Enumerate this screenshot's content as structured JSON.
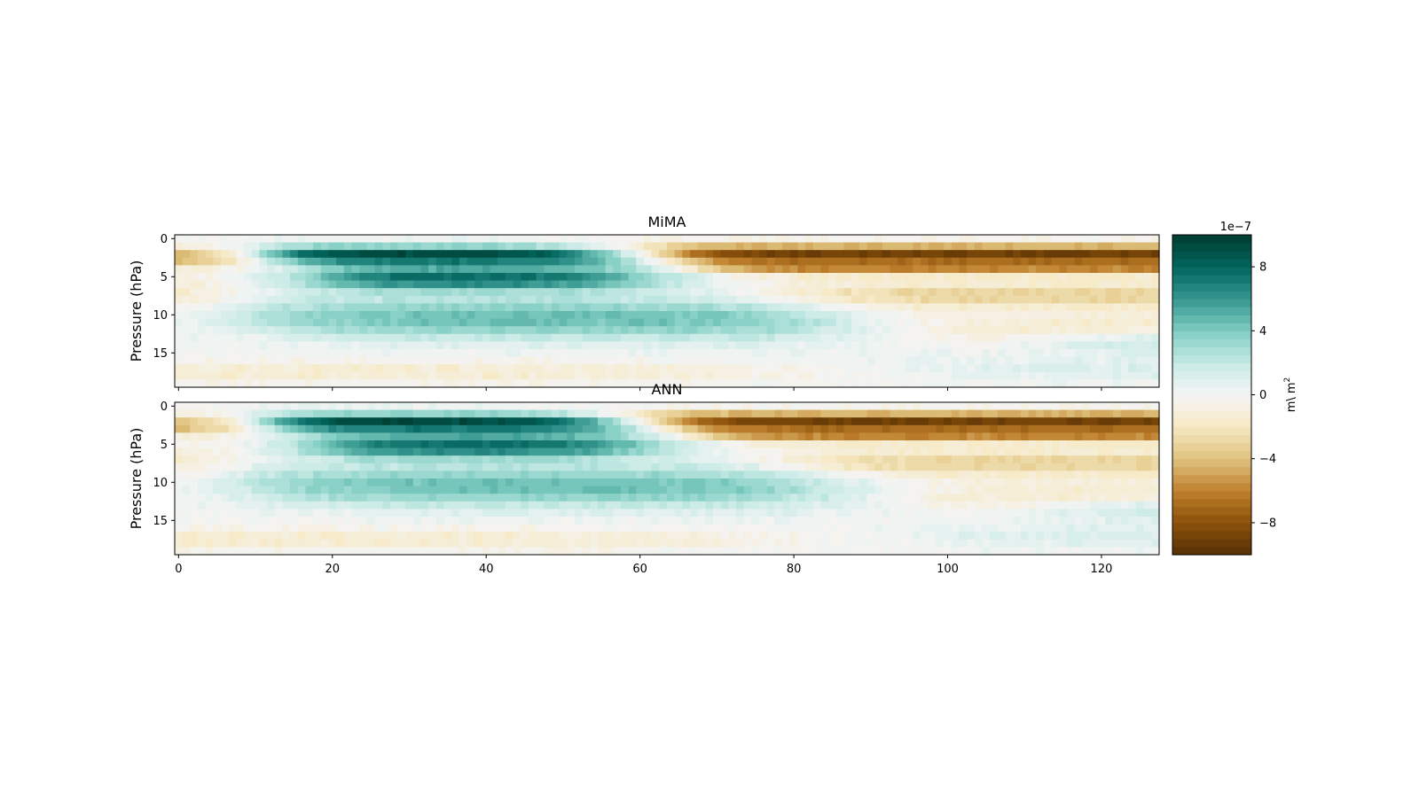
{
  "chart_data": [
    {
      "type": "heatmap",
      "title": "MiMA",
      "xlabel": "",
      "ylabel": "Pressure (hPa)",
      "xlim": [
        -0.5,
        127.5
      ],
      "ylim": [
        19.5,
        -0.5
      ],
      "xticks": [
        0,
        20,
        40,
        60,
        80,
        100,
        120
      ],
      "xtick_labels_visible": false,
      "yticks": [
        0,
        5,
        10,
        15
      ],
      "n_x": 128,
      "n_y": 20,
      "zlim": [
        -1e-06,
        1e-06
      ],
      "colormap": "BrBG",
      "field_description": "approximate reconstruction read from colour"
    },
    {
      "type": "heatmap",
      "title": "ANN",
      "xlabel": "",
      "ylabel": "Pressure (hPa)",
      "xlim": [
        -0.5,
        127.5
      ],
      "ylim": [
        19.5,
        -0.5
      ],
      "xticks": [
        0,
        20,
        40,
        60,
        80,
        100,
        120
      ],
      "xtick_labels_visible": true,
      "yticks": [
        0,
        5,
        10,
        15
      ],
      "n_x": 128,
      "n_y": 20,
      "zlim": [
        -1e-06,
        1e-06
      ],
      "colormap": "BrBG"
    }
  ],
  "colorbar": {
    "label": "m\\ m",
    "label_superscript": "2",
    "offset_text": "1e−7",
    "ticks": [
      8,
      4,
      0,
      -4,
      -8
    ],
    "tick_labels": [
      "8",
      "4",
      "0",
      "−4",
      "−8"
    ],
    "range": [
      -10,
      10
    ],
    "n_levels": 40,
    "colors": [
      "#543005",
      "#8c510a",
      "#bf812d",
      "#dfc27d",
      "#f6e8c3",
      "#f5f5f5",
      "#c7eae5",
      "#80cdc1",
      "#35978f",
      "#01665e",
      "#003c30"
    ]
  },
  "xtick_text": [
    "0",
    "20",
    "40",
    "60",
    "80",
    "100",
    "120"
  ],
  "ytick_text": [
    "0",
    "5",
    "10",
    "15"
  ]
}
